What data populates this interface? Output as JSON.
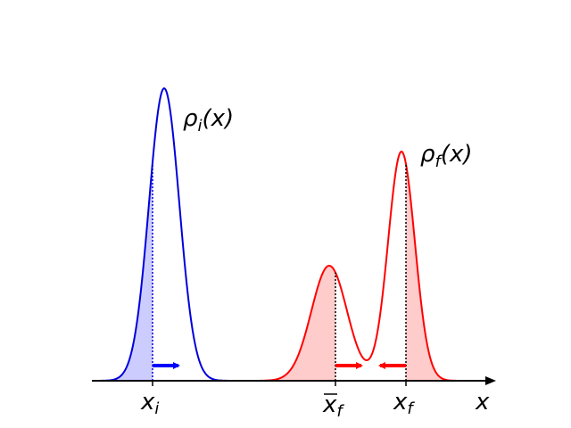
{
  "labels": {
    "rho_i": {
      "symbol": "ρ",
      "subscript": "i",
      "argument": "(x)"
    },
    "rho_f": {
      "symbol": "ρ",
      "subscript": "f",
      "argument": "(x)"
    },
    "x_i": {
      "symbol": "x",
      "subscript": "i"
    },
    "xbar_f": {
      "symbol": "x",
      "subscript": "f"
    },
    "x_f": {
      "symbol": "x",
      "subscript": "f"
    },
    "axis": "x"
  }
}
